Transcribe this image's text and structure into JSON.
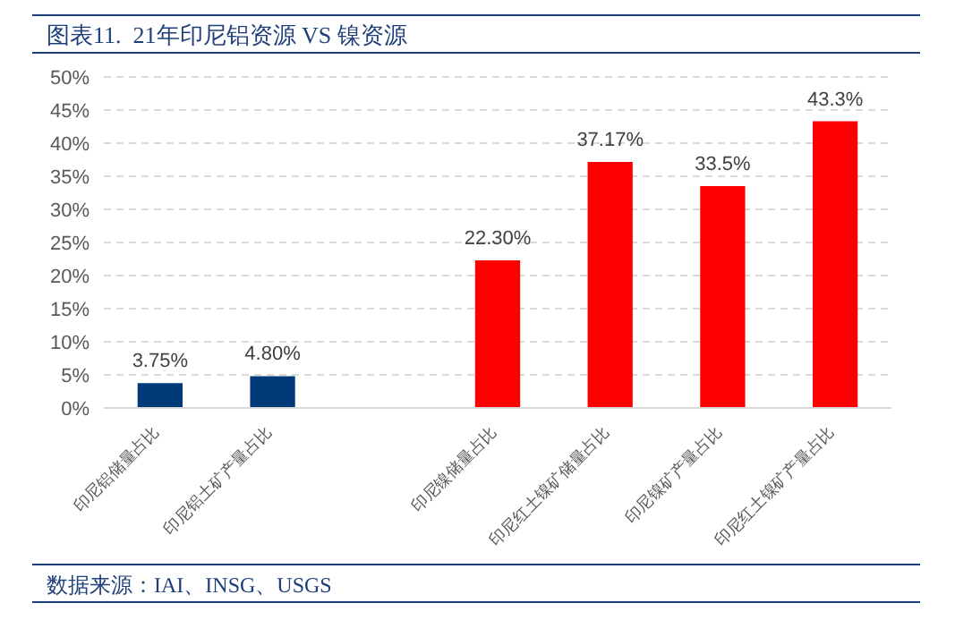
{
  "chart_data": {
    "type": "bar",
    "title": "图表11.  21年印尼铝资源 VS 镍资源",
    "categories": [
      "印尼铝储量占比",
      "印尼铝土矿产量占比",
      null,
      "印尼镍储量占比",
      "印尼红土镍矿储量占比",
      "印尼镍矿产量占比",
      "印尼红土镍矿产量占比"
    ],
    "values": [
      3.75,
      4.8,
      null,
      22.3,
      37.17,
      33.5,
      43.3
    ],
    "colors": [
      "#003a78",
      "#003a78",
      "#ffffff",
      "#ff0000",
      "#ff0000",
      "#ff0000",
      "#ff0000"
    ],
    "value_labels": [
      "3.75%",
      "4.80%",
      null,
      "22.30%",
      "37.17%",
      "33.5%",
      "43.3%"
    ],
    "ylim": [
      0,
      50
    ],
    "yticks": [
      {
        "value": 0,
        "label": "0%"
      },
      {
        "value": 5,
        "label": "5%"
      },
      {
        "value": 10,
        "label": "10%"
      },
      {
        "value": 15,
        "label": "15%"
      },
      {
        "value": 20,
        "label": "20%"
      },
      {
        "value": 25,
        "label": "25%"
      },
      {
        "value": 30,
        "label": "30%"
      },
      {
        "value": 35,
        "label": "35%"
      },
      {
        "value": 40,
        "label": "40%"
      },
      {
        "value": 45,
        "label": "45%"
      },
      {
        "value": 50,
        "label": "50%"
      }
    ],
    "grid": "y",
    "legend": false,
    "annotations": [
      "数据来源：IAI、INSG、USGS"
    ]
  }
}
